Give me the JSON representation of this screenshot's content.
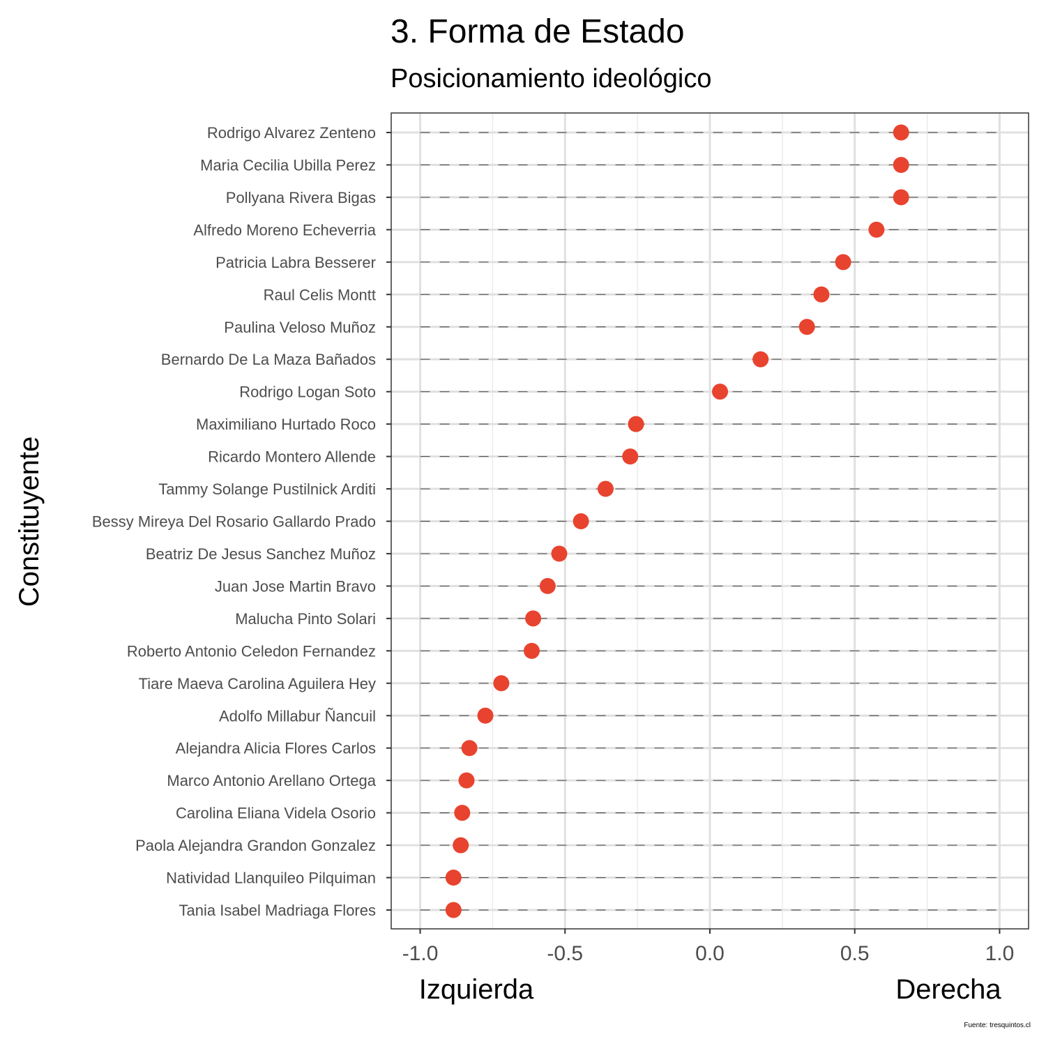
{
  "title": "3. Forma de Estado",
  "subtitle": "Posicionamiento ideológico",
  "caption": "Fuente: tresquintos.cl",
  "colors": {
    "point": "#E8432F",
    "panel_border": "#333333",
    "grid_major": "#E0E0E0",
    "grid_minor": "#EBEBEB",
    "segment": "#555555",
    "label": "#4D4D4D"
  },
  "chart_data": {
    "type": "scatter",
    "style": "dot plot with dashed horizontal guide lines",
    "ylabel": "Constituyente",
    "x_left_label": "Izquierda",
    "x_right_label": "Derecha",
    "xlim": [
      -1.1,
      1.1
    ],
    "x_ticks": [
      -1.0,
      -0.5,
      0.0,
      0.5,
      1.0
    ],
    "x_tick_labels": [
      "-1.0",
      "-0.5",
      "0.0",
      "0.5",
      "1.0"
    ],
    "grid": true,
    "points": [
      {
        "name": "Rodrigo Alvarez Zenteno",
        "x": 0.66
      },
      {
        "name": "Maria Cecilia Ubilla Perez",
        "x": 0.66
      },
      {
        "name": "Pollyana Rivera Bigas",
        "x": 0.66
      },
      {
        "name": "Alfredo Moreno Echeverria",
        "x": 0.575
      },
      {
        "name": "Patricia Labra Besserer",
        "x": 0.46
      },
      {
        "name": "Raul Celis Montt",
        "x": 0.385
      },
      {
        "name": "Paulina Veloso Muñoz",
        "x": 0.335
      },
      {
        "name": "Bernardo De La Maza Bañados",
        "x": 0.175
      },
      {
        "name": "Rodrigo Logan Soto",
        "x": 0.035
      },
      {
        "name": "Maximiliano Hurtado Roco",
        "x": -0.255
      },
      {
        "name": "Ricardo Montero Allende",
        "x": -0.275
      },
      {
        "name": "Tammy Solange Pustilnick Arditi",
        "x": -0.36
      },
      {
        "name": "Bessy Mireya Del Rosario Gallardo Prado",
        "x": -0.445
      },
      {
        "name": "Beatriz De Jesus Sanchez Muñoz",
        "x": -0.52
      },
      {
        "name": "Juan Jose Martin Bravo",
        "x": -0.56
      },
      {
        "name": "Malucha Pinto Solari",
        "x": -0.61
      },
      {
        "name": "Roberto Antonio Celedon Fernandez",
        "x": -0.615
      },
      {
        "name": "Tiare Maeva Carolina Aguilera Hey",
        "x": -0.72
      },
      {
        "name": "Adolfo Millabur Ñancuil",
        "x": -0.775
      },
      {
        "name": "Alejandra Alicia Flores Carlos",
        "x": -0.83
      },
      {
        "name": "Marco Antonio Arellano Ortega",
        "x": -0.84
      },
      {
        "name": "Carolina Eliana Videla Osorio",
        "x": -0.855
      },
      {
        "name": "Paola Alejandra Grandon Gonzalez",
        "x": -0.86
      },
      {
        "name": "Natividad Llanquileo Pilquiman",
        "x": -0.885
      },
      {
        "name": "Tania Isabel Madriaga Flores",
        "x": -0.885
      }
    ]
  }
}
